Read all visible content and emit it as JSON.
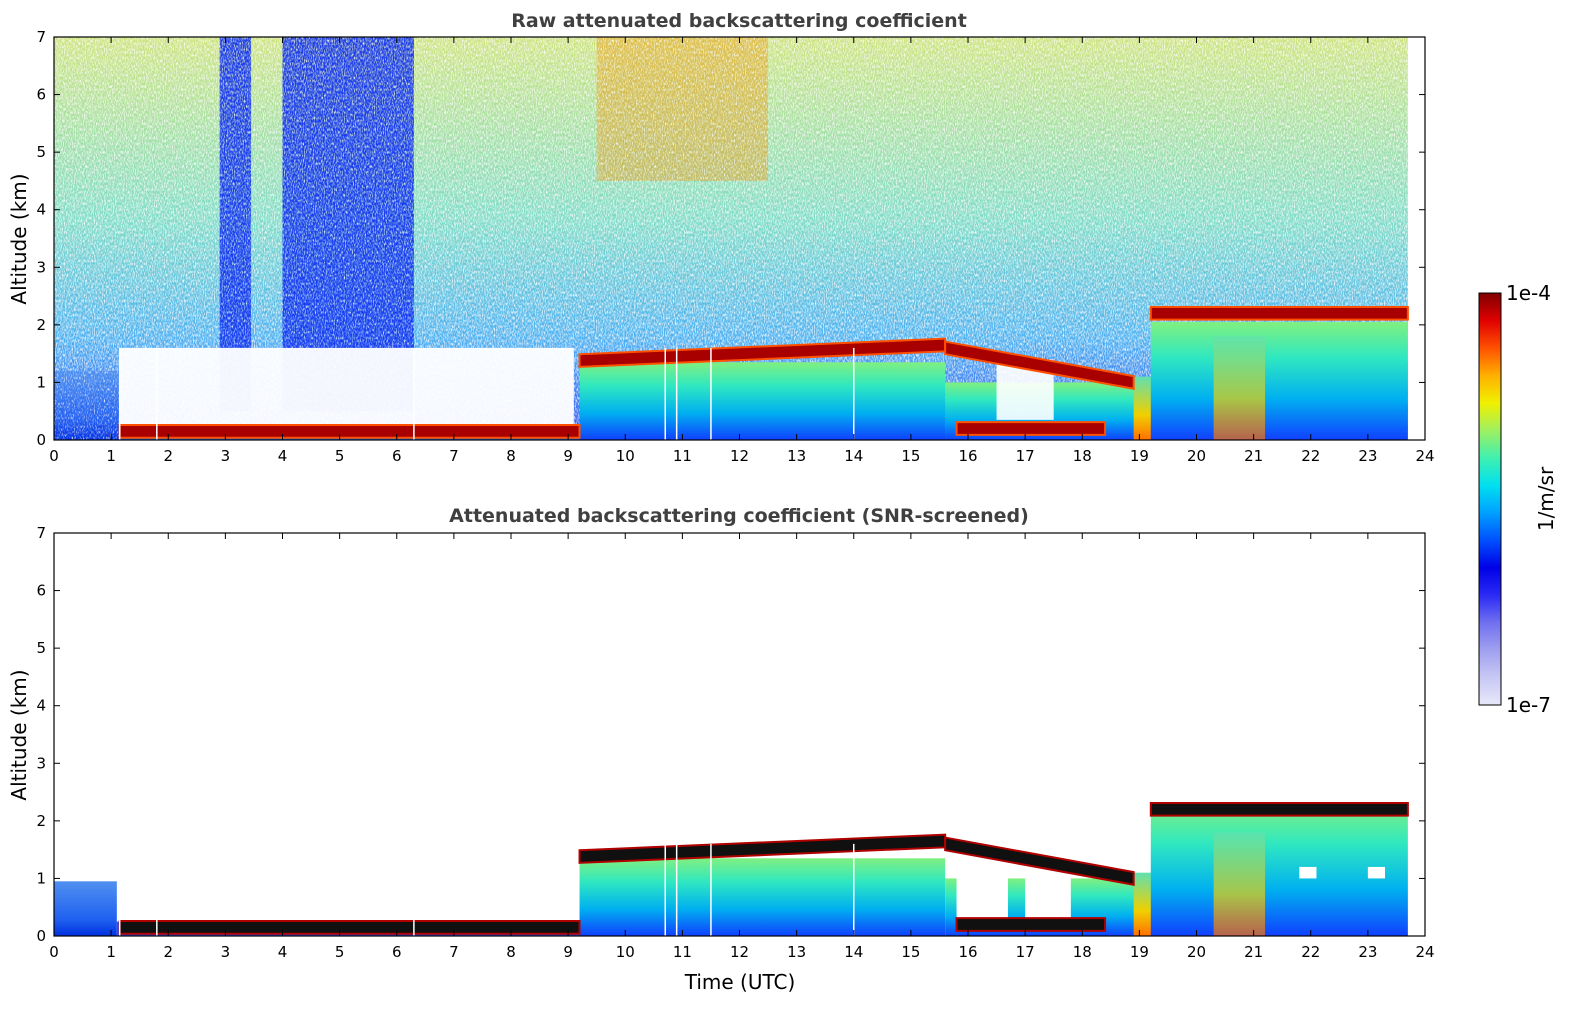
{
  "chart_data": [
    {
      "type": "heatmap",
      "title": "Raw attenuated backscattering coefficient",
      "xlabel": "",
      "ylabel": "Altitude (km)",
      "xlim": [
        0,
        24
      ],
      "ylim": [
        0,
        7
      ],
      "xticks": [
        "0",
        "1",
        "2",
        "3",
        "4",
        "5",
        "6",
        "7",
        "8",
        "9",
        "10",
        "11",
        "12",
        "13",
        "14",
        "15",
        "16",
        "17",
        "18",
        "19",
        "20",
        "21",
        "22",
        "23",
        "24"
      ],
      "yticks": [
        "0",
        "1",
        "2",
        "3",
        "4",
        "5",
        "6",
        "7"
      ],
      "data_end_time": 23.7,
      "layers": [
        {
          "start": 1.15,
          "end": 9.2,
          "altitude": 0.15,
          "level": "max"
        },
        {
          "start": 9.2,
          "end": 15.6,
          "altitude_start": 1.38,
          "altitude_end": 1.65,
          "level": "max"
        },
        {
          "start": 15.6,
          "end": 18.9,
          "altitude_start": 1.6,
          "altitude_end": 1.0,
          "level": "max"
        },
        {
          "start": 15.8,
          "end": 18.4,
          "altitude": 0.2,
          "level": "max"
        },
        {
          "start": 19.2,
          "end": 23.7,
          "altitude": 2.2,
          "level": "max"
        }
      ]
    },
    {
      "type": "heatmap",
      "title": "Attenuated backscattering coefficient (SNR-screened)",
      "xlabel": "Time (UTC)",
      "ylabel": "Altitude (km)",
      "xlim": [
        0,
        24
      ],
      "ylim": [
        0,
        7
      ],
      "xticks": [
        "0",
        "1",
        "2",
        "3",
        "4",
        "5",
        "6",
        "7",
        "8",
        "9",
        "10",
        "11",
        "12",
        "13",
        "14",
        "15",
        "16",
        "17",
        "18",
        "19",
        "20",
        "21",
        "22",
        "23",
        "24"
      ],
      "yticks": [
        "0",
        "1",
        "2",
        "3",
        "4",
        "5",
        "6",
        "7"
      ],
      "data_end_time": 23.7
    }
  ],
  "colorbar": {
    "min_label": "1e-7",
    "max_label": "1e-4",
    "unit_label": "1/m/sr",
    "colors": [
      "#e8e8fa",
      "#c8c8f5",
      "#a0a0f0",
      "#7070f0",
      "#2a2af5",
      "#0000e6",
      "#0050ff",
      "#00a0ff",
      "#00e0f0",
      "#40f0b0",
      "#a0f060",
      "#f0f000",
      "#ffb000",
      "#ff5000",
      "#e00000",
      "#800000"
    ]
  }
}
